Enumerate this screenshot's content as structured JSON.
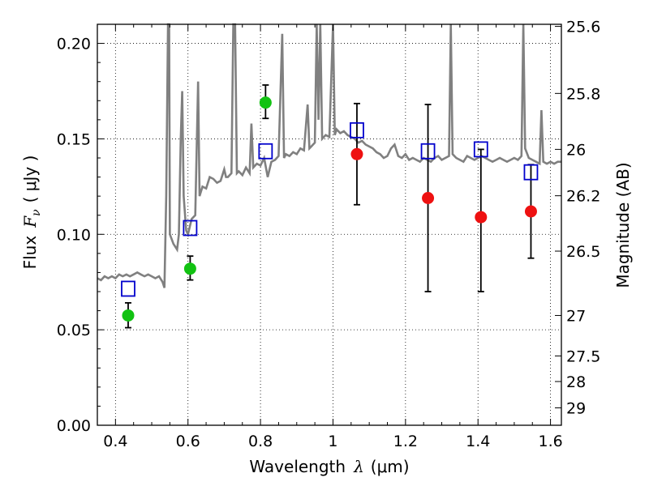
{
  "chart_data": {
    "type": "scatter",
    "xlabel": "Wavelength",
    "xlabel_symbol": "λ",
    "xlabel_unit": "(μm)",
    "ylabel": "Flux",
    "ylabel_symbol": "F",
    "ylabel_subscript": "ν",
    "ylabel_unit": "( μJy )",
    "y2label": "Magnitude (AB)",
    "xlim": [
      0.35,
      1.63
    ],
    "ylim": [
      0,
      0.21
    ],
    "grid": true,
    "x_ticks": [
      {
        "value": 0.4,
        "label": "0.4"
      },
      {
        "value": 0.6,
        "label": "0.6"
      },
      {
        "value": 0.8,
        "label": "0.8"
      },
      {
        "value": 1.0,
        "label": "1"
      },
      {
        "value": 1.2,
        "label": "1.2"
      },
      {
        "value": 1.4,
        "label": "1.4"
      },
      {
        "value": 1.6,
        "label": "1.6"
      }
    ],
    "y_ticks": [
      {
        "value": 0.0,
        "label": "0.00"
      },
      {
        "value": 0.05,
        "label": "0.05"
      },
      {
        "value": 0.1,
        "label": "0.10"
      },
      {
        "value": 0.15,
        "label": "0.15"
      },
      {
        "value": 0.2,
        "label": "0.20"
      }
    ],
    "y2_ticks": [
      {
        "label": "25.6",
        "flux": 0.2089
      },
      {
        "label": "25.8",
        "flux": 0.1738
      },
      {
        "label": "26",
        "flux": 0.1445
      },
      {
        "label": "26.2",
        "flux": 0.1202
      },
      {
        "label": "26.5",
        "flux": 0.0912
      },
      {
        "label": "27",
        "flux": 0.0575
      },
      {
        "label": "27.5",
        "flux": 0.0363
      },
      {
        "label": "28",
        "flux": 0.0229
      },
      {
        "label": "29",
        "flux": 0.0091
      }
    ],
    "spectrum": {
      "color": "#808080",
      "points": [
        [
          0.35,
          0.077
        ],
        [
          0.36,
          0.076
        ],
        [
          0.37,
          0.078
        ],
        [
          0.38,
          0.077
        ],
        [
          0.39,
          0.078
        ],
        [
          0.4,
          0.077
        ],
        [
          0.41,
          0.079
        ],
        [
          0.42,
          0.078
        ],
        [
          0.43,
          0.079
        ],
        [
          0.44,
          0.078
        ],
        [
          0.45,
          0.079
        ],
        [
          0.46,
          0.08
        ],
        [
          0.47,
          0.079
        ],
        [
          0.48,
          0.078
        ],
        [
          0.49,
          0.079
        ],
        [
          0.5,
          0.078
        ],
        [
          0.51,
          0.077
        ],
        [
          0.52,
          0.078
        ],
        [
          0.53,
          0.075
        ],
        [
          0.535,
          0.072
        ],
        [
          0.54,
          0.12
        ],
        [
          0.545,
          0.21
        ],
        [
          0.548,
          0.21
        ],
        [
          0.55,
          0.1
        ],
        [
          0.56,
          0.095
        ],
        [
          0.57,
          0.092
        ],
        [
          0.575,
          0.1
        ],
        [
          0.58,
          0.15
        ],
        [
          0.584,
          0.175
        ],
        [
          0.588,
          0.12
        ],
        [
          0.595,
          0.102
        ],
        [
          0.6,
          0.1
        ],
        [
          0.61,
          0.108
        ],
        [
          0.62,
          0.11
        ],
        [
          0.628,
          0.18
        ],
        [
          0.632,
          0.12
        ],
        [
          0.64,
          0.125
        ],
        [
          0.65,
          0.124
        ],
        [
          0.66,
          0.13
        ],
        [
          0.67,
          0.129
        ],
        [
          0.68,
          0.127
        ],
        [
          0.69,
          0.128
        ],
        [
          0.7,
          0.134
        ],
        [
          0.705,
          0.13
        ],
        [
          0.71,
          0.13
        ],
        [
          0.72,
          0.132
        ],
        [
          0.725,
          0.21
        ],
        [
          0.73,
          0.21
        ],
        [
          0.735,
          0.132
        ],
        [
          0.74,
          0.133
        ],
        [
          0.75,
          0.131
        ],
        [
          0.76,
          0.135
        ],
        [
          0.77,
          0.132
        ],
        [
          0.775,
          0.158
        ],
        [
          0.78,
          0.135
        ],
        [
          0.79,
          0.137
        ],
        [
          0.8,
          0.136
        ],
        [
          0.81,
          0.14
        ],
        [
          0.82,
          0.13
        ],
        [
          0.83,
          0.138
        ],
        [
          0.84,
          0.139
        ],
        [
          0.85,
          0.141
        ],
        [
          0.86,
          0.205
        ],
        [
          0.865,
          0.14
        ],
        [
          0.87,
          0.142
        ],
        [
          0.88,
          0.141
        ],
        [
          0.89,
          0.143
        ],
        [
          0.9,
          0.142
        ],
        [
          0.91,
          0.145
        ],
        [
          0.92,
          0.144
        ],
        [
          0.93,
          0.168
        ],
        [
          0.935,
          0.145
        ],
        [
          0.94,
          0.146
        ],
        [
          0.95,
          0.148
        ],
        [
          0.955,
          0.21
        ],
        [
          0.96,
          0.16
        ],
        [
          0.965,
          0.21
        ],
        [
          0.97,
          0.15
        ],
        [
          0.98,
          0.152
        ],
        [
          0.99,
          0.151
        ],
        [
          1.0,
          0.21
        ],
        [
          1.005,
          0.152
        ],
        [
          1.01,
          0.155
        ],
        [
          1.02,
          0.153
        ],
        [
          1.03,
          0.154
        ],
        [
          1.04,
          0.152
        ],
        [
          1.05,
          0.151
        ],
        [
          1.06,
          0.15
        ],
        [
          1.07,
          0.148
        ],
        [
          1.08,
          0.149
        ],
        [
          1.09,
          0.147
        ],
        [
          1.1,
          0.146
        ],
        [
          1.11,
          0.145
        ],
        [
          1.12,
          0.143
        ],
        [
          1.13,
          0.142
        ],
        [
          1.14,
          0.14
        ],
        [
          1.15,
          0.141
        ],
        [
          1.16,
          0.145
        ],
        [
          1.17,
          0.147
        ],
        [
          1.18,
          0.141
        ],
        [
          1.19,
          0.14
        ],
        [
          1.2,
          0.142
        ],
        [
          1.21,
          0.139
        ],
        [
          1.22,
          0.14
        ],
        [
          1.23,
          0.139
        ],
        [
          1.24,
          0.138
        ],
        [
          1.25,
          0.14
        ],
        [
          1.26,
          0.139
        ],
        [
          1.27,
          0.138
        ],
        [
          1.28,
          0.14
        ],
        [
          1.29,
          0.141
        ],
        [
          1.3,
          0.139
        ],
        [
          1.31,
          0.14
        ],
        [
          1.32,
          0.141
        ],
        [
          1.325,
          0.21
        ],
        [
          1.33,
          0.142
        ],
        [
          1.34,
          0.14
        ],
        [
          1.35,
          0.139
        ],
        [
          1.36,
          0.138
        ],
        [
          1.37,
          0.141
        ],
        [
          1.38,
          0.14
        ],
        [
          1.39,
          0.139
        ],
        [
          1.4,
          0.14
        ],
        [
          1.41,
          0.141
        ],
        [
          1.42,
          0.14
        ],
        [
          1.43,
          0.139
        ],
        [
          1.44,
          0.138
        ],
        [
          1.45,
          0.139
        ],
        [
          1.46,
          0.14
        ],
        [
          1.47,
          0.139
        ],
        [
          1.48,
          0.138
        ],
        [
          1.49,
          0.139
        ],
        [
          1.5,
          0.14
        ],
        [
          1.51,
          0.139
        ],
        [
          1.52,
          0.141
        ],
        [
          1.525,
          0.21
        ],
        [
          1.53,
          0.145
        ],
        [
          1.54,
          0.14
        ],
        [
          1.55,
          0.139
        ],
        [
          1.56,
          0.138
        ],
        [
          1.57,
          0.137
        ],
        [
          1.575,
          0.165
        ],
        [
          1.58,
          0.138
        ],
        [
          1.59,
          0.137
        ],
        [
          1.6,
          0.138
        ],
        [
          1.61,
          0.137
        ],
        [
          1.62,
          0.138
        ],
        [
          1.63,
          0.138
        ]
      ]
    },
    "series": [
      {
        "marker": "circle",
        "color": "#12c212",
        "points": [
          {
            "x": 0.435,
            "y": 0.0575,
            "err_low": 0.0064,
            "err_high": 0.0066
          },
          {
            "x": 0.606,
            "y": 0.082,
            "err_low": 0.0059,
            "err_high": 0.0066
          },
          {
            "x": 0.814,
            "y": 0.169,
            "err_low": 0.0083,
            "err_high": 0.0092
          }
        ]
      },
      {
        "marker": "circle",
        "color": "#ee1111",
        "points": [
          {
            "x": 1.066,
            "y": 0.142,
            "err_low": 0.0265,
            "err_high": 0.0265
          },
          {
            "x": 1.262,
            "y": 0.119,
            "err_low": 0.049,
            "err_high": 0.049
          },
          {
            "x": 1.408,
            "y": 0.109,
            "err_low": 0.039,
            "err_high": 0.0355
          },
          {
            "x": 1.546,
            "y": 0.112,
            "err_low": 0.0245,
            "err_high": 0.0245
          }
        ]
      },
      {
        "marker": "open-square",
        "color": "#0000cc",
        "points": [
          {
            "x": 0.435,
            "y": 0.0715
          },
          {
            "x": 0.606,
            "y": 0.1033
          },
          {
            "x": 0.814,
            "y": 0.1435
          },
          {
            "x": 1.066,
            "y": 0.1545
          },
          {
            "x": 1.262,
            "y": 0.1435
          },
          {
            "x": 1.408,
            "y": 0.1445
          },
          {
            "x": 1.546,
            "y": 0.1325
          }
        ]
      }
    ]
  }
}
